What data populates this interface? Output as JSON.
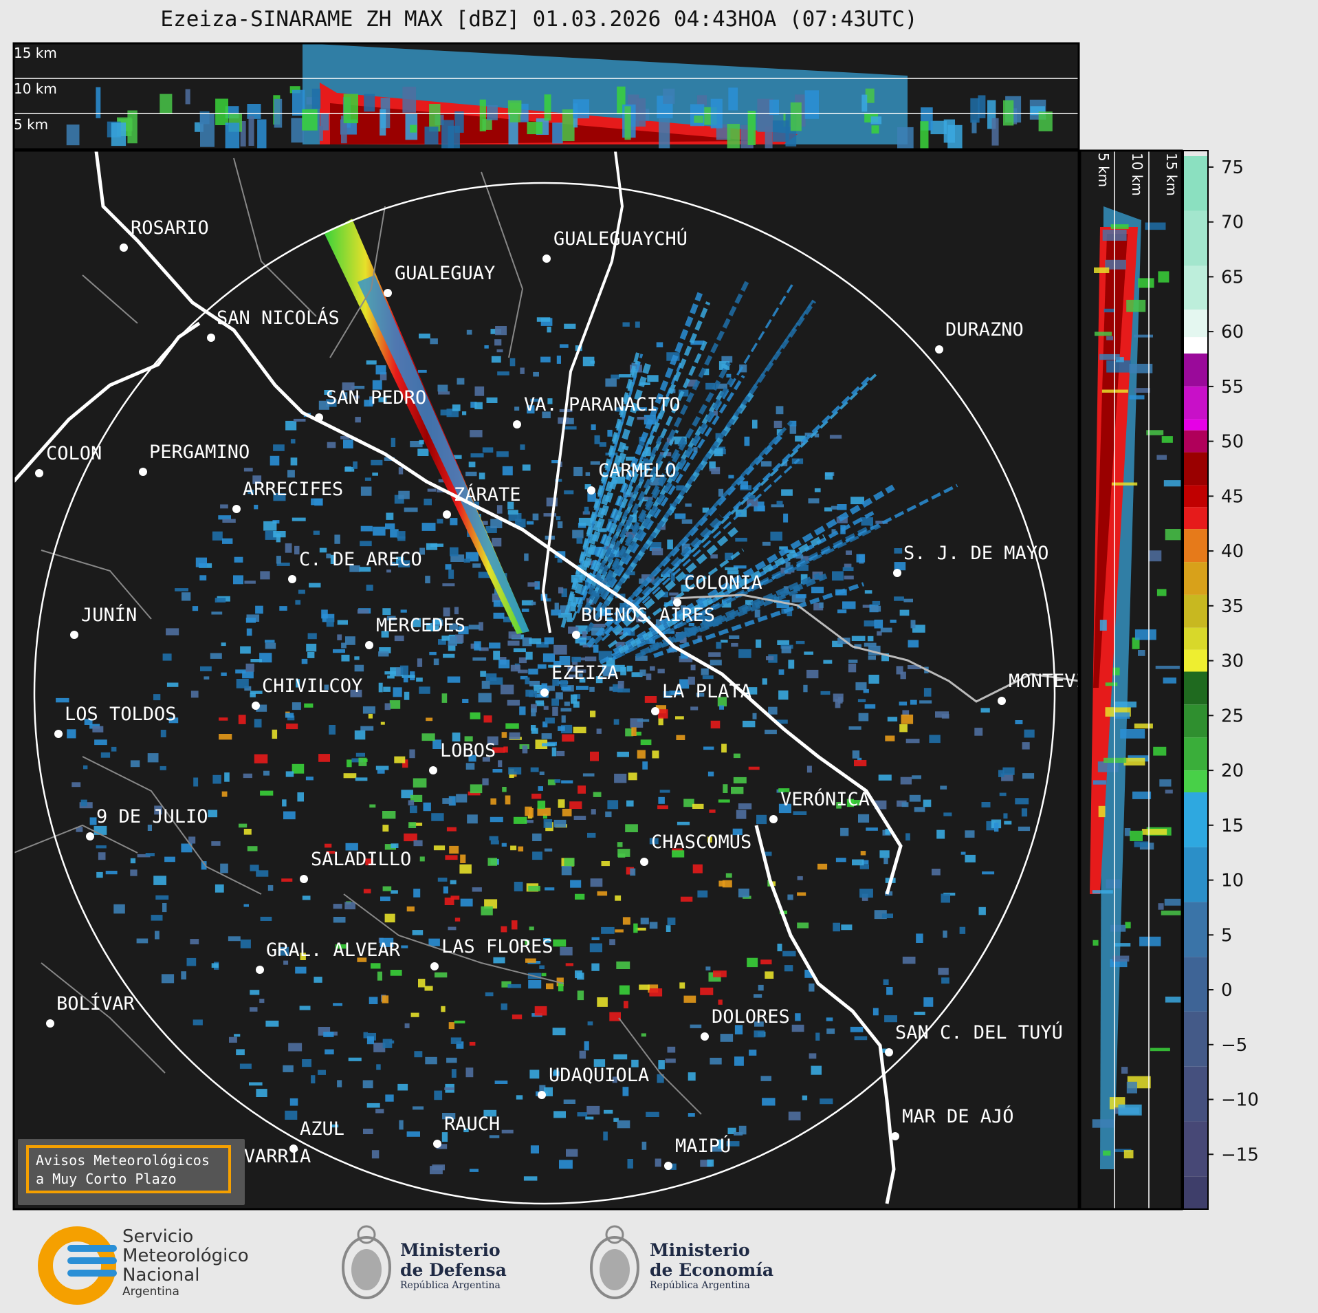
{
  "title": "Ezeiza-SINARAME ZH MAX [dBZ] 01.03.2026 04:43HOA (07:43UTC)",
  "top_panel": {
    "height_labels": [
      "15 km",
      "10 km",
      "5 km"
    ]
  },
  "side_panel": {
    "height_labels": [
      "5 km",
      "10 km",
      "15 km"
    ]
  },
  "colorbar": {
    "ticks": [
      "75",
      "70",
      "65",
      "60",
      "55",
      "50",
      "45",
      "40",
      "35",
      "30",
      "25",
      "20",
      "15",
      "10",
      "5",
      "0",
      "−5",
      "−10",
      "−15"
    ],
    "unit": "dBZ"
  },
  "cities": [
    {
      "name": "ROSARIO"
    },
    {
      "name": "GUALEGUAYCHÚ"
    },
    {
      "name": "GUALEGUAY"
    },
    {
      "name": "SAN NICOLÁS"
    },
    {
      "name": "DURAZNO"
    },
    {
      "name": "SAN PEDRO"
    },
    {
      "name": "VA. PARANACITO"
    },
    {
      "name": "COLON"
    },
    {
      "name": "PERGAMINO"
    },
    {
      "name": "CARMELO"
    },
    {
      "name": "ARRECIFES"
    },
    {
      "name": "ZÁRATE"
    },
    {
      "name": "S. J. DE MAYO"
    },
    {
      "name": "C. DE ARECO"
    },
    {
      "name": "COLONIA"
    },
    {
      "name": "JUNÍN"
    },
    {
      "name": "BUENOS AIRES"
    },
    {
      "name": "MERCEDES"
    },
    {
      "name": "EZEIZA"
    },
    {
      "name": "MONTEVIDEO"
    },
    {
      "name": "CHIVILCOY"
    },
    {
      "name": "LA PLATA"
    },
    {
      "name": "LOS TOLDOS"
    },
    {
      "name": "LOBOS"
    },
    {
      "name": "VERÓNICA"
    },
    {
      "name": "9 DE JULIO"
    },
    {
      "name": "CHASCOMUS"
    },
    {
      "name": "SALADILLO"
    },
    {
      "name": "GRAL. ALVEAR"
    },
    {
      "name": "LAS FLORES"
    },
    {
      "name": "BOLÍVAR"
    },
    {
      "name": "DOLORES"
    },
    {
      "name": "SAN C. DEL TUYÚ"
    },
    {
      "name": "UDAQUIOLA"
    },
    {
      "name": "MAR DE AJÓ"
    },
    {
      "name": "AZUL"
    },
    {
      "name": "RAUCH"
    },
    {
      "name": "OLAVARRÍA"
    },
    {
      "name": "MAIPÚ"
    }
  ],
  "avisos": {
    "line1": "Avisos Meteorológicos",
    "line2": "a Muy Corto Plazo"
  },
  "logos": {
    "smn": {
      "line1": "Servicio",
      "line2": "Meteorológico",
      "line3": "Nacional",
      "line4": "Argentina"
    },
    "defensa": {
      "line1": "Ministerio",
      "line2": "de Defensa",
      "line3": "República Argentina"
    },
    "economia": {
      "line1": "Ministerio",
      "line2": "de Economía",
      "line3": "República Argentina"
    }
  },
  "colors": {
    "background": "#1b1b1b",
    "accent": "#f5a000",
    "brand_blue": "#2a8fd6"
  }
}
